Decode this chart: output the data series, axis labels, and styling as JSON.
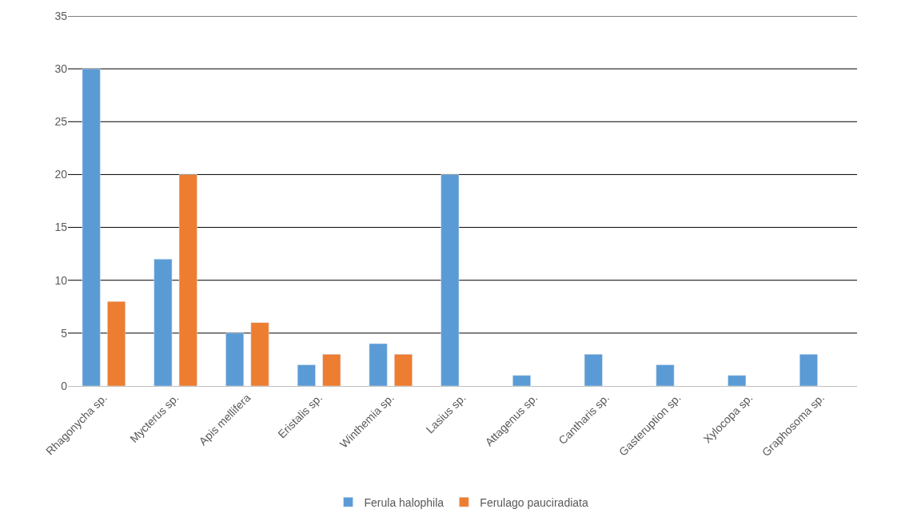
{
  "chart_data": {
    "type": "bar",
    "categories": [
      "Rhagonycha sp.",
      "Mycterus sp.",
      "Apis mellifera",
      "Eristalis sp.",
      "Winthemia sp.",
      "Lasius sp.",
      "Attagenus sp.",
      "Cantharis sp.",
      "Gasteruption sp.",
      "Xylocopa sp.",
      "Graphosoma sp."
    ],
    "series": [
      {
        "name": "Ferula halophila",
        "color": "#5b9bd5",
        "values": [
          30,
          12,
          5,
          2,
          4,
          20,
          1,
          3,
          2,
          1,
          3
        ]
      },
      {
        "name": "Ferulago pauciradiata",
        "color": "#ed7d31",
        "values": [
          8,
          20,
          6,
          3,
          3,
          null,
          null,
          null,
          null,
          null,
          null
        ]
      }
    ],
    "ylim": [
      0,
      35
    ],
    "yticks": [
      0,
      5,
      10,
      15,
      20,
      25,
      30,
      35
    ],
    "grid": "y",
    "legend": "bottom"
  }
}
